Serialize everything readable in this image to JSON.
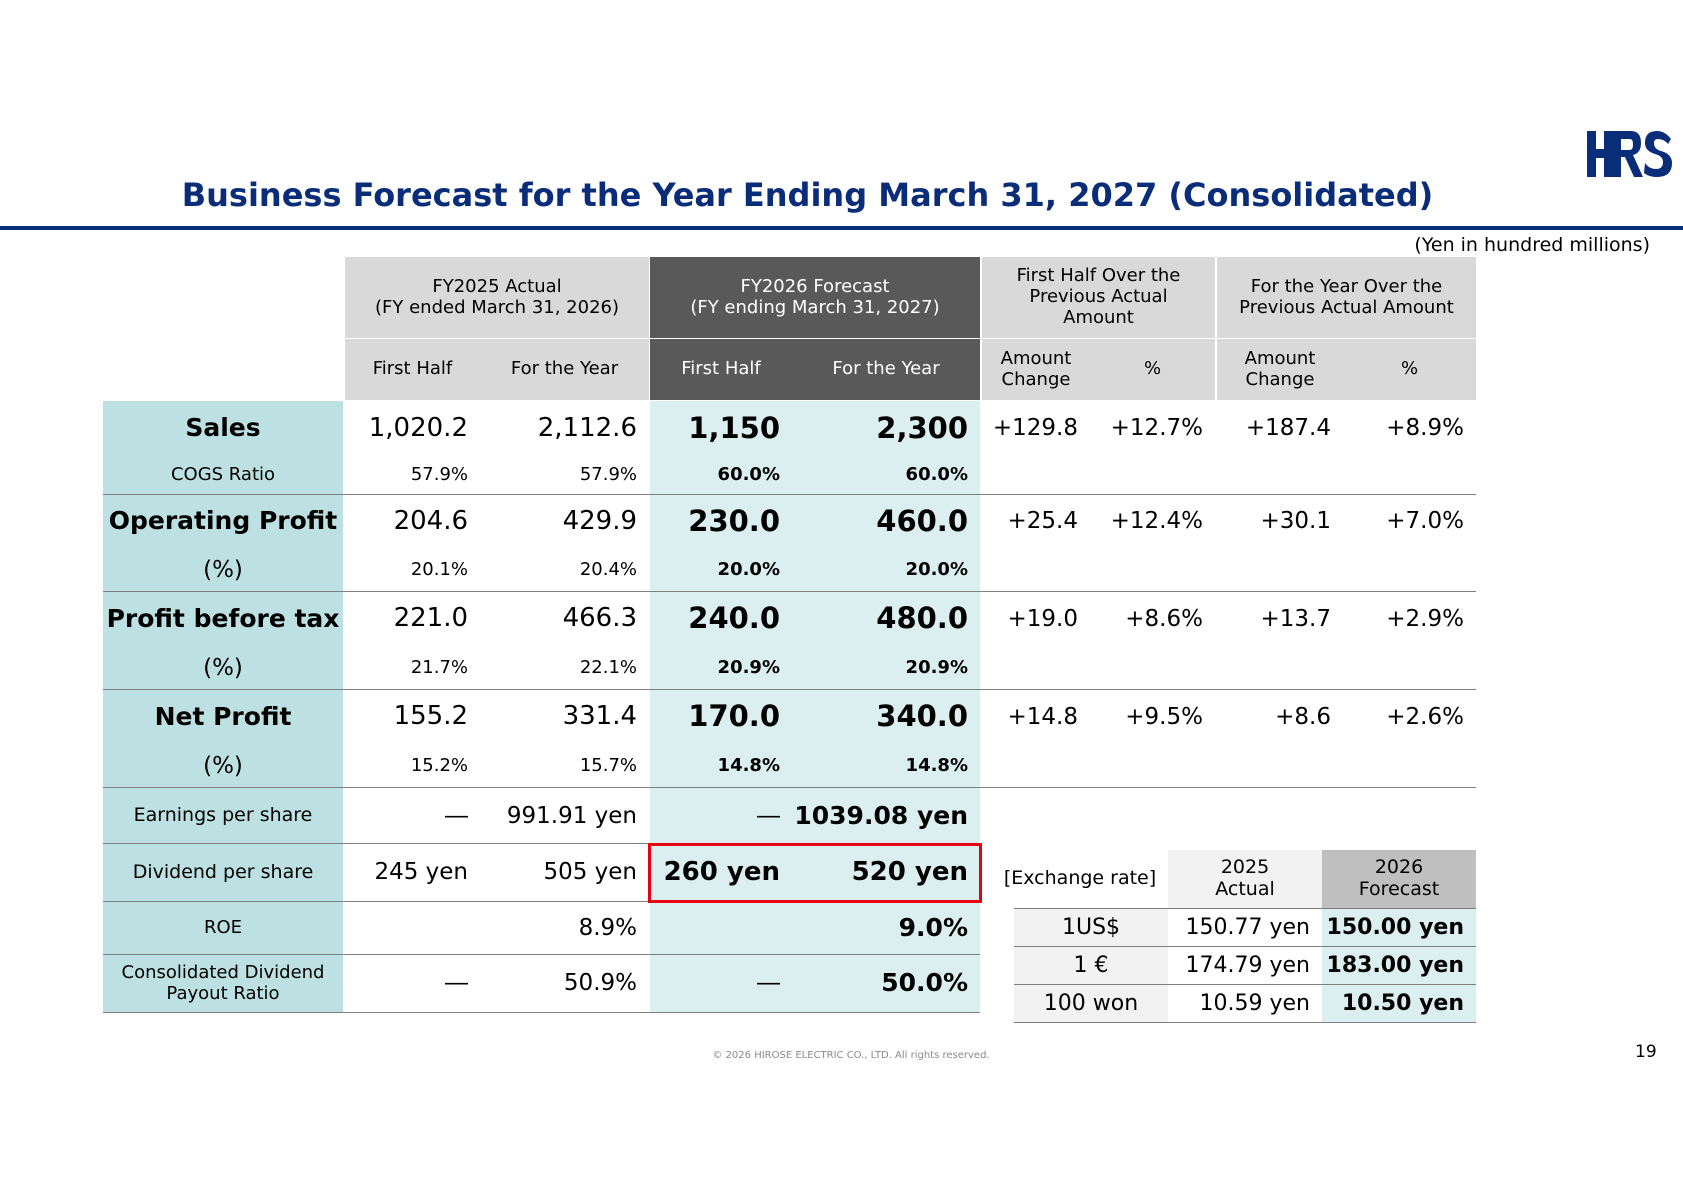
{
  "title": "Business Forecast for the Year Ending March 31, 2027 (Consolidated)",
  "unit_note": "(Yen in hundred millions)",
  "header": {
    "fy2025_line1": "FY2025 Actual",
    "fy2025_line2": "(FY ended March 31, 2026)",
    "fy2026_line1": "FY2026 Forecast",
    "fy2026_line2": "(FY ending March 31, 2027)",
    "first_half_over_line1": "First Half Over the",
    "first_half_over_line2": "Previous Actual",
    "first_half_over_line3": "Amount",
    "year_over_line1": "For the Year Over the",
    "year_over_line2": "Previous Actual Amount",
    "first_half": "First Half",
    "for_the_year": "For the Year",
    "amount_change_line1": "Amount",
    "amount_change_line2": "Change",
    "percent": "%"
  },
  "rows": {
    "sales": {
      "label": "Sales",
      "a_h1": "1,020.2",
      "a_y": "2,112.6",
      "f_h1": "1,150",
      "f_y": "2,300",
      "h_amt": "+129.8",
      "h_pct": "+12.7%",
      "y_amt": "+187.4",
      "y_pct": "+8.9%"
    },
    "cogs": {
      "label": "COGS Ratio",
      "a_h1": "57.9%",
      "a_y": "57.9%",
      "f_h1": "60.0%",
      "f_y": "60.0%"
    },
    "op": {
      "label": "Operating Profit",
      "a_h1": "204.6",
      "a_y": "429.9",
      "f_h1": "230.0",
      "f_y": "460.0",
      "h_amt": "+25.4",
      "h_pct": "+12.4%",
      "y_amt": "+30.1",
      "y_pct": "+7.0%"
    },
    "op_pct": {
      "label": "(%)",
      "a_h1": "20.1%",
      "a_y": "20.4%",
      "f_h1": "20.0%",
      "f_y": "20.0%"
    },
    "pbt": {
      "label": "Profit before tax",
      "a_h1": "221.0",
      "a_y": "466.3",
      "f_h1": "240.0",
      "f_y": "480.0",
      "h_amt": "+19.0",
      "h_pct": "+8.6%",
      "y_amt": "+13.7",
      "y_pct": "+2.9%"
    },
    "pbt_pct": {
      "label": "(%)",
      "a_h1": "21.7%",
      "a_y": "22.1%",
      "f_h1": "20.9%",
      "f_y": "20.9%"
    },
    "np": {
      "label": "Net Profit",
      "a_h1": "155.2",
      "a_y": "331.4",
      "f_h1": "170.0",
      "f_y": "340.0",
      "h_amt": "+14.8",
      "h_pct": "+9.5%",
      "y_amt": "+8.6",
      "y_pct": "+2.6%"
    },
    "np_pct": {
      "label": "(%)",
      "a_h1": "15.2%",
      "a_y": "15.7%",
      "f_h1": "14.8%",
      "f_y": "14.8%"
    },
    "eps": {
      "label": "Earnings per share",
      "a_h1": "―",
      "a_y": "991.91 yen",
      "f_h1": "―",
      "f_y": "1039.08 yen"
    },
    "dps": {
      "label": "Dividend per share",
      "a_h1": "245 yen",
      "a_y": "505 yen",
      "f_h1": "260 yen",
      "f_y": "520 yen"
    },
    "roe": {
      "label": "ROE",
      "a_y": "8.9%",
      "f_y": "9.0%"
    },
    "payout": {
      "label_line1": "Consolidated Dividend",
      "label_line2": "Payout Ratio",
      "a_h1": "―",
      "a_y": "50.9%",
      "f_h1": "―",
      "f_y": "50.0%"
    }
  },
  "exchange": {
    "label": "[Exchange rate]",
    "col_actual_line1": "2025",
    "col_actual_line2": "Actual",
    "col_forecast_line1": "2026",
    "col_forecast_line2": "Forecast",
    "rows": [
      {
        "currency": "1US$",
        "actual": "150.77 yen",
        "forecast": "150.00 yen"
      },
      {
        "currency": "1 €",
        "actual": "174.79 yen",
        "forecast": "183.00 yen"
      },
      {
        "currency": "100 won",
        "actual": "10.59 yen",
        "forecast": "10.50 yen"
      }
    ]
  },
  "logo_text": "HRS",
  "copyright": "© 2026 HIROSE ELECTRIC CO., LTD. All rights reserved.",
  "page_number": "19",
  "colors": {
    "brand_blue": "#0a2d7a",
    "label_teal": "#bde0e3",
    "forecast_tint": "#dceff0",
    "header_dark": "#595959",
    "header_light": "#d9d9d9",
    "highlight_red": "#e60012"
  }
}
